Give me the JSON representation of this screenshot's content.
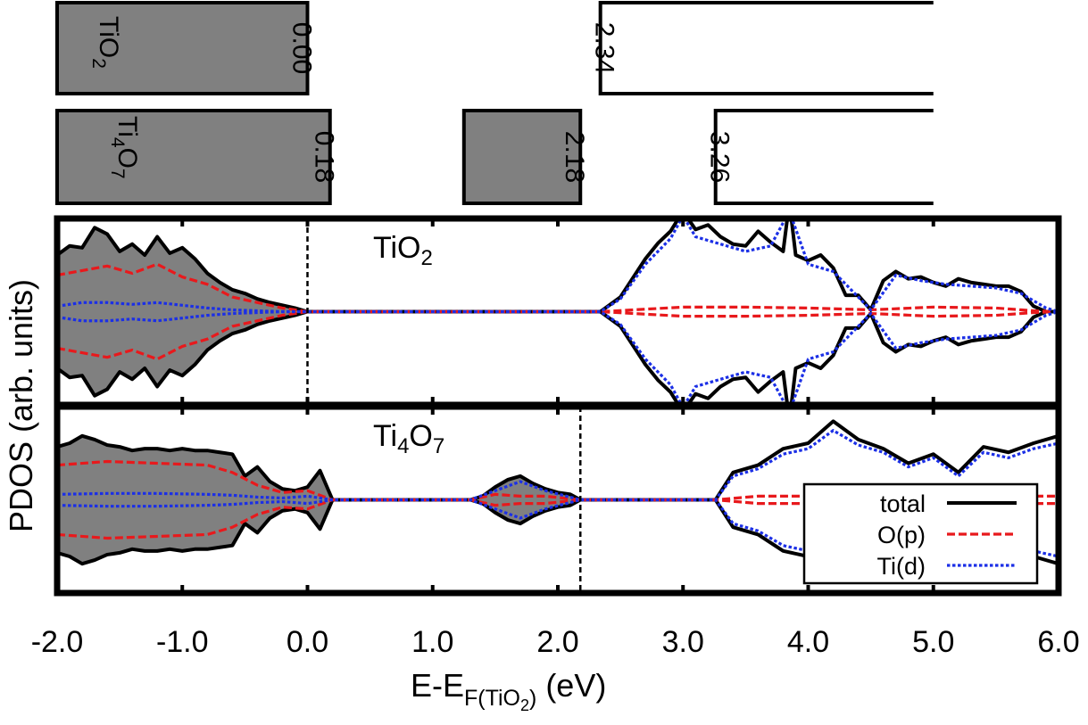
{
  "chart_data": [
    {
      "type": "bar",
      "description_role": "band-edge schematic",
      "rows": [
        {
          "material": {
            "base": "TiO",
            "subscripts": [
              "2"
            ],
            "full": "TiO2"
          },
          "bands": [
            {
              "from": -2.0,
              "to": 0.0,
              "filled": true,
              "edge_label": "0.00"
            },
            {
              "from": 2.34,
              "to": 5.0,
              "filled": false,
              "edge_label": "2.34"
            }
          ]
        },
        {
          "material": {
            "base": "Ti4O7",
            "full": "Ti4O7"
          },
          "bands": [
            {
              "from": -2.0,
              "to": 0.18,
              "filled": true,
              "edge_label": "0.18"
            },
            {
              "from": 1.25,
              "to": 2.18,
              "filled": true,
              "edge_label": "2.18"
            },
            {
              "from": 3.26,
              "to": 5.0,
              "filled": false,
              "edge_label": "3.26"
            }
          ]
        }
      ]
    },
    {
      "type": "area",
      "ylabel": "PDOS (arb. units)",
      "xlabel": {
        "prefix": "E-E",
        "sub": "F(TiO",
        "subsub": "2",
        "subclose": ")",
        "suffix": " (eV)"
      },
      "xlim": [
        -2.0,
        6.0
      ],
      "x_ticks": [
        -2.0,
        -1.0,
        0.0,
        1.0,
        2.0,
        3.0,
        4.0,
        5.0,
        6.0
      ],
      "x_tick_labels": [
        "-2.0",
        "-1.0",
        "0.0",
        "1.0",
        "2.0",
        "3.0",
        "4.0",
        "5.0",
        "6.0"
      ],
      "grid": false,
      "legend": {
        "placement": "bottom-right",
        "entries": [
          {
            "label": "total",
            "color": "#000000",
            "style": "solid"
          },
          {
            "label": "O(p)",
            "color": "#e8191c",
            "style": "dashed"
          },
          {
            "label": "Ti(d)",
            "color": "#1b2fe6",
            "style": "dotted"
          }
        ]
      },
      "panels": [
        {
          "label": "TiO2",
          "label_parts": {
            "base": "TiO",
            "sub": "2"
          },
          "fermi_level": 0.0,
          "occupied_shading_below": 0.0,
          "series": [
            {
              "name": "total",
              "color": "#000000",
              "x": [
                -2.0,
                -1.9,
                -1.8,
                -1.7,
                -1.6,
                -1.5,
                -1.4,
                -1.3,
                -1.2,
                -1.1,
                -1.0,
                -0.9,
                -0.8,
                -0.7,
                -0.6,
                -0.5,
                -0.4,
                -0.3,
                -0.2,
                -0.1,
                0.0,
                0.2,
                2.34,
                2.5,
                2.7,
                2.8,
                2.9,
                3.0,
                3.1,
                3.2,
                3.3,
                3.4,
                3.5,
                3.6,
                3.7,
                3.8,
                3.85,
                3.9,
                4.0,
                4.1,
                4.2,
                4.3,
                4.4,
                4.5,
                4.6,
                4.7,
                4.8,
                4.9,
                5.0,
                5.1,
                5.2,
                5.3,
                5.4,
                5.5,
                5.6,
                5.7,
                5.8,
                5.9,
                6.0
              ],
              "y": [
                0.62,
                0.72,
                0.7,
                0.92,
                0.85,
                0.66,
                0.74,
                0.62,
                0.82,
                0.64,
                0.7,
                0.58,
                0.42,
                0.32,
                0.24,
                0.2,
                0.14,
                0.1,
                0.07,
                0.04,
                0.0,
                0.0,
                0.0,
                0.16,
                0.58,
                0.75,
                0.88,
                1.1,
                0.9,
                0.95,
                0.82,
                0.74,
                0.72,
                0.88,
                0.76,
                0.66,
                1.2,
                0.62,
                0.56,
                0.62,
                0.48,
                0.18,
                0.18,
                0.02,
                0.34,
                0.44,
                0.36,
                0.38,
                0.32,
                0.28,
                0.36,
                0.32,
                0.3,
                0.28,
                0.28,
                0.22,
                0.06,
                0.0,
                0.0
              ]
            },
            {
              "name": "O(p)",
              "color": "#e8191c",
              "x": [
                -2.0,
                -1.8,
                -1.6,
                -1.4,
                -1.2,
                -1.0,
                -0.8,
                -0.6,
                -0.4,
                -0.2,
                0.0,
                2.34,
                3.0,
                3.5,
                4.0,
                4.5,
                5.0,
                5.5,
                5.8,
                6.0
              ],
              "y": [
                0.4,
                0.45,
                0.5,
                0.42,
                0.52,
                0.38,
                0.3,
                0.16,
                0.1,
                0.04,
                0.0,
                0.0,
                0.05,
                0.05,
                0.04,
                0.02,
                0.05,
                0.04,
                0.01,
                0.0
              ]
            },
            {
              "name": "Ti(d)",
              "color": "#1b2fe6",
              "x": [
                -2.0,
                -1.8,
                -1.6,
                -1.4,
                -1.2,
                -1.0,
                -0.8,
                -0.6,
                -0.4,
                -0.2,
                0.0,
                2.34,
                2.5,
                2.7,
                2.9,
                3.0,
                3.1,
                3.3,
                3.5,
                3.7,
                3.85,
                4.0,
                4.2,
                4.4,
                4.5,
                4.7,
                4.9,
                5.1,
                5.3,
                5.5,
                5.7,
                5.9,
                6.0
              ],
              "y": [
                0.06,
                0.1,
                0.1,
                0.08,
                0.1,
                0.07,
                0.04,
                0.02,
                0.01,
                0.0,
                0.0,
                0.0,
                0.14,
                0.52,
                0.8,
                1.05,
                0.82,
                0.74,
                0.66,
                0.72,
                1.1,
                0.52,
                0.44,
                0.16,
                0.02,
                0.4,
                0.34,
                0.3,
                0.28,
                0.26,
                0.2,
                0.04,
                0.0
              ]
            }
          ]
        },
        {
          "label": "Ti4O7",
          "label_parts": {
            "base": "Ti",
            "sub1": "4",
            "mid": "O",
            "sub2": "7"
          },
          "fermi_level": 2.18,
          "occupied_shading_below": 2.18,
          "series": [
            {
              "name": "total",
              "color": "#000000",
              "x": [
                -2.0,
                -1.9,
                -1.8,
                -1.7,
                -1.6,
                -1.5,
                -1.4,
                -1.3,
                -1.2,
                -1.1,
                -1.0,
                -0.9,
                -0.8,
                -0.7,
                -0.6,
                -0.5,
                -0.4,
                -0.3,
                -0.2,
                -0.1,
                0.0,
                0.1,
                0.2,
                1.3,
                1.4,
                1.5,
                1.6,
                1.7,
                1.8,
                1.9,
                2.0,
                2.1,
                2.18,
                3.26,
                3.4,
                3.6,
                3.8,
                4.0,
                4.2,
                4.3,
                4.4,
                4.6,
                4.8,
                5.0,
                5.2,
                5.4,
                5.6,
                5.8,
                6.0
              ],
              "y": [
                0.58,
                0.62,
                0.7,
                0.66,
                0.6,
                0.58,
                0.54,
                0.56,
                0.56,
                0.54,
                0.56,
                0.54,
                0.54,
                0.52,
                0.5,
                0.26,
                0.36,
                0.2,
                0.12,
                0.1,
                0.14,
                0.32,
                0.0,
                0.0,
                0.04,
                0.14,
                0.22,
                0.26,
                0.18,
                0.12,
                0.08,
                0.06,
                0.0,
                0.0,
                0.3,
                0.38,
                0.56,
                0.62,
                0.86,
                0.76,
                0.66,
                0.56,
                0.4,
                0.5,
                0.3,
                0.58,
                0.52,
                0.62,
                0.7
              ]
            },
            {
              "name": "O(p)",
              "color": "#e8191c",
              "x": [
                -2.0,
                -1.6,
                -1.2,
                -0.8,
                -0.6,
                -0.4,
                -0.2,
                0.0,
                0.2,
                1.3,
                1.5,
                1.7,
                1.9,
                2.18,
                3.26,
                3.6,
                4.0,
                4.5,
                5.0,
                5.5,
                6.0
              ],
              "y": [
                0.38,
                0.42,
                0.4,
                0.38,
                0.3,
                0.16,
                0.08,
                0.1,
                0.0,
                0.0,
                0.06,
                0.04,
                0.04,
                0.0,
                0.0,
                0.04,
                0.04,
                0.04,
                0.04,
                0.04,
                0.04
              ]
            },
            {
              "name": "Ti(d)",
              "color": "#1b2fe6",
              "x": [
                -2.0,
                -1.6,
                -1.2,
                -0.8,
                -0.6,
                -0.4,
                -0.2,
                0.0,
                0.2,
                1.3,
                1.5,
                1.7,
                1.9,
                2.18,
                3.26,
                3.4,
                3.6,
                3.8,
                4.0,
                4.2,
                4.4,
                4.6,
                4.8,
                5.0,
                5.2,
                5.4,
                5.6,
                5.8,
                6.0
              ],
              "y": [
                0.06,
                0.07,
                0.07,
                0.06,
                0.05,
                0.03,
                0.02,
                0.04,
                0.0,
                0.0,
                0.1,
                0.2,
                0.1,
                0.0,
                0.0,
                0.26,
                0.34,
                0.5,
                0.56,
                0.76,
                0.6,
                0.52,
                0.36,
                0.46,
                0.26,
                0.52,
                0.46,
                0.56,
                0.62
              ]
            }
          ]
        }
      ]
    }
  ]
}
